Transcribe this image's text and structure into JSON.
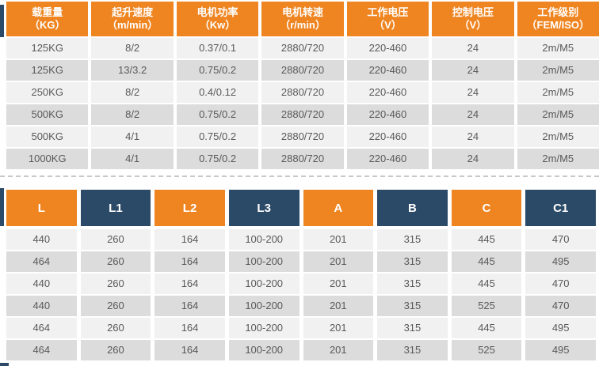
{
  "colors": {
    "orange": "#EF8521",
    "navy": "#2B4A68",
    "row_light": "#F1F1F1",
    "row_dark": "#DCDCDC",
    "cell_text": "#595959",
    "header_text": "#FFFFFF",
    "divider": "#C8C8C8"
  },
  "chart_data": [
    {
      "type": "table",
      "key": "motor-spec-table",
      "columns": [
        {
          "key": "load-capacity",
          "label": "载重量",
          "unit": "（KG）",
          "color": "orange"
        },
        {
          "key": "lifting-speed",
          "label": "起升速度",
          "unit": "（m/min）",
          "color": "orange"
        },
        {
          "key": "motor-power",
          "label": "电机功率",
          "unit": "（Kw）",
          "color": "orange"
        },
        {
          "key": "motor-speed",
          "label": "电机转速",
          "unit": "（r/min）",
          "color": "orange"
        },
        {
          "key": "working-voltage",
          "label": "工作电压",
          "unit": "（V）",
          "color": "orange"
        },
        {
          "key": "control-voltage",
          "label": "控制电压",
          "unit": "（V）",
          "color": "orange"
        },
        {
          "key": "working-class",
          "label": "工作级别",
          "unit": "（FEM/ISO）",
          "color": "orange"
        }
      ],
      "rows": [
        [
          "125KG",
          "8/2",
          "0.37/0.1",
          "2880/720",
          "220-460",
          "24",
          "2m/M5"
        ],
        [
          "125KG",
          "13/3.2",
          "0.75/0.2",
          "2880/720",
          "220-460",
          "24",
          "2m/M5"
        ],
        [
          "250KG",
          "8/2",
          "0.4/0.12",
          "2880/720",
          "220-460",
          "24",
          "2m/M5"
        ],
        [
          "500KG",
          "8/2",
          "0.75/0.2",
          "2880/720",
          "220-460",
          "24",
          "2m/M5"
        ],
        [
          "500KG",
          "4/1",
          "0.75/0.2",
          "2880/720",
          "220-460",
          "24",
          "2m/M5"
        ],
        [
          "1000KG",
          "4/1",
          "0.75/0.2",
          "2880/720",
          "220-460",
          "24",
          "2m/M5"
        ]
      ]
    },
    {
      "type": "table",
      "key": "dimension-table",
      "columns": [
        {
          "key": "l",
          "label": "L",
          "color": "orange"
        },
        {
          "key": "l1",
          "label": "L1",
          "color": "navy"
        },
        {
          "key": "l2",
          "label": "L2",
          "color": "orange"
        },
        {
          "key": "l3",
          "label": "L3",
          "color": "navy"
        },
        {
          "key": "a",
          "label": "A",
          "color": "orange"
        },
        {
          "key": "b",
          "label": "B",
          "color": "navy"
        },
        {
          "key": "c",
          "label": "C",
          "color": "orange"
        },
        {
          "key": "c1",
          "label": "C1",
          "color": "navy"
        }
      ],
      "rows": [
        [
          "440",
          "260",
          "164",
          "100-200",
          "201",
          "315",
          "445",
          "470"
        ],
        [
          "464",
          "260",
          "164",
          "100-200",
          "201",
          "315",
          "445",
          "495"
        ],
        [
          "440",
          "260",
          "164",
          "100-200",
          "201",
          "315",
          "445",
          "470"
        ],
        [
          "440",
          "260",
          "164",
          "100-200",
          "201",
          "315",
          "525",
          "470"
        ],
        [
          "464",
          "260",
          "164",
          "100-200",
          "201",
          "315",
          "445",
          "495"
        ],
        [
          "464",
          "260",
          "164",
          "100-200",
          "201",
          "315",
          "525",
          "495"
        ]
      ]
    }
  ]
}
